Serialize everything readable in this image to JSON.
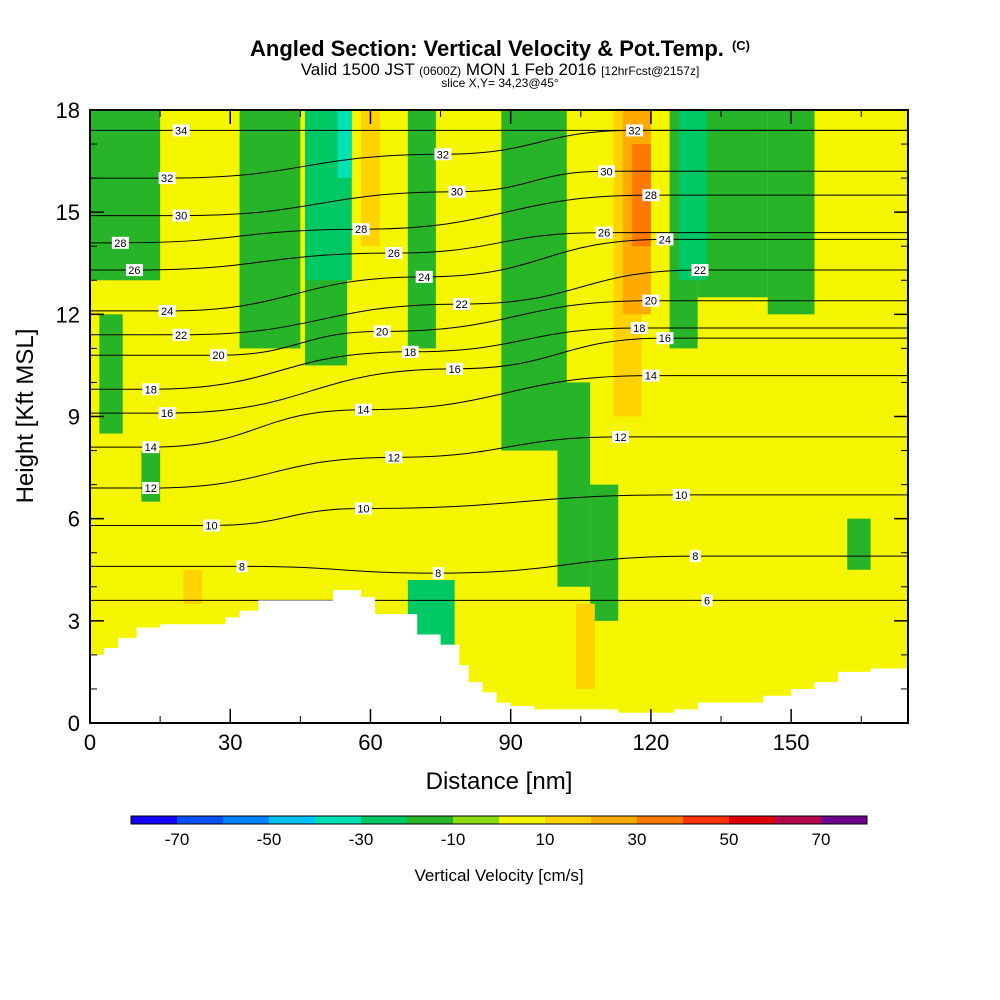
{
  "header": {
    "title": "Angled Section: Vertical Velocity & Pot.Temp.",
    "title_units": "(C)",
    "valid_prefix": "Valid 1500 JST",
    "valid_zulu": "(0600Z)",
    "valid_date": "MON 1 Feb 2016",
    "forecast": "[12hrFcst@2157z]",
    "slice": "slice X,Y= 34,23@45°"
  },
  "chart_data": {
    "type": "heatmap",
    "xlabel": "Distance [nm]",
    "ylabel": "Height [Kft MSL]",
    "xlim": [
      0,
      175
    ],
    "ylim": [
      0,
      18
    ],
    "x_ticks": [
      "0",
      "30",
      "60",
      "90",
      "120",
      "150"
    ],
    "x_tick_values": [
      0,
      30,
      60,
      90,
      120,
      150
    ],
    "y_ticks": [
      "0",
      "3",
      "6",
      "9",
      "12",
      "15",
      "18"
    ],
    "y_tick_values": [
      0,
      3,
      6,
      9,
      12,
      15,
      18
    ],
    "terrain": [
      [
        0,
        2.0
      ],
      [
        3,
        2.2
      ],
      [
        6,
        2.5
      ],
      [
        10,
        2.8
      ],
      [
        15,
        2.9
      ],
      [
        20,
        2.9
      ],
      [
        26,
        2.9
      ],
      [
        29,
        3.1
      ],
      [
        32,
        3.3
      ],
      [
        36,
        3.6
      ],
      [
        42,
        3.6
      ],
      [
        48,
        3.6
      ],
      [
        52,
        3.9
      ],
      [
        56,
        3.9
      ],
      [
        58,
        3.7
      ],
      [
        61,
        3.2
      ],
      [
        66,
        3.2
      ],
      [
        70,
        2.6
      ],
      [
        75,
        2.3
      ],
      [
        79,
        1.7
      ],
      [
        81,
        1.2
      ],
      [
        84,
        0.9
      ],
      [
        87,
        0.6
      ],
      [
        90,
        0.5
      ],
      [
        95,
        0.4
      ],
      [
        100,
        0.4
      ],
      [
        108,
        0.4
      ],
      [
        113,
        0.3
      ],
      [
        120,
        0.3
      ],
      [
        125,
        0.4
      ],
      [
        130,
        0.6
      ],
      [
        135,
        0.6
      ],
      [
        140,
        0.6
      ],
      [
        144,
        0.8
      ],
      [
        150,
        1.0
      ],
      [
        155,
        1.2
      ],
      [
        160,
        1.5
      ],
      [
        167,
        1.6
      ],
      [
        175,
        1.6
      ]
    ],
    "velocity_cells": [
      {
        "x": [
          0,
          175
        ],
        "y": [
          0,
          18
        ],
        "value": 0
      },
      {
        "x": [
          0,
          30
        ],
        "y": [
          0,
          2.9
        ],
        "value": 5
      },
      {
        "x": [
          30,
          80
        ],
        "y": [
          3.5,
          4.8
        ],
        "value": 5
      },
      {
        "x": [
          22,
          28
        ],
        "y": [
          5,
          9
        ],
        "value": 5
      },
      {
        "x": [
          40,
          85
        ],
        "y": [
          6,
          9.5
        ],
        "value": 5
      },
      {
        "x": [
          88,
          150
        ],
        "y": [
          7.5,
          10
        ],
        "value": 5
      },
      {
        "x": [
          160,
          175
        ],
        "y": [
          6,
          9
        ],
        "value": 5
      },
      {
        "x": [
          8,
          30
        ],
        "y": [
          9,
          11.5
        ],
        "value": 5
      },
      {
        "x": [
          20,
          24
        ],
        "y": [
          13,
          18
        ],
        "value": 5
      },
      {
        "x": [
          25,
          30
        ],
        "y": [
          11,
          18
        ],
        "value": 5
      },
      {
        "x": [
          60,
          72
        ],
        "y": [
          11,
          18
        ],
        "value": 5
      },
      {
        "x": [
          76,
          86
        ],
        "y": [
          12,
          18
        ],
        "value": 5
      },
      {
        "x": [
          110,
          116
        ],
        "y": [
          11,
          18
        ],
        "value": 5
      },
      {
        "x": [
          132,
          146
        ],
        "y": [
          10,
          12
        ],
        "value": 5
      },
      {
        "x": [
          166,
          175
        ],
        "y": [
          10,
          18
        ],
        "value": 5
      },
      {
        "x": [
          0,
          15
        ],
        "y": [
          13,
          18
        ],
        "value": -15
      },
      {
        "x": [
          2,
          7
        ],
        "y": [
          8.5,
          12
        ],
        "value": -15
      },
      {
        "x": [
          32,
          45
        ],
        "y": [
          11,
          18
        ],
        "value": -15
      },
      {
        "x": [
          46,
          55
        ],
        "y": [
          10.5,
          18
        ],
        "value": -15
      },
      {
        "x": [
          68,
          74
        ],
        "y": [
          11,
          18
        ],
        "value": -15
      },
      {
        "x": [
          88,
          102
        ],
        "y": [
          8,
          18
        ],
        "value": -15
      },
      {
        "x": [
          100,
          107
        ],
        "y": [
          4,
          10
        ],
        "value": -15
      },
      {
        "x": [
          107,
          113
        ],
        "y": [
          3,
          7
        ],
        "value": -15
      },
      {
        "x": [
          124,
          130
        ],
        "y": [
          11,
          18
        ],
        "value": -15
      },
      {
        "x": [
          130,
          145
        ],
        "y": [
          12.5,
          18
        ],
        "value": -15
      },
      {
        "x": [
          145,
          155
        ],
        "y": [
          12,
          18
        ],
        "value": -15
      },
      {
        "x": [
          11,
          15
        ],
        "y": [
          6.5,
          8
        ],
        "value": -15
      },
      {
        "x": [
          162,
          167
        ],
        "y": [
          4.5,
          6
        ],
        "value": -15
      },
      {
        "x": [
          68,
          78
        ],
        "y": [
          2,
          4.2
        ],
        "value": -25
      },
      {
        "x": [
          46,
          56
        ],
        "y": [
          13,
          18
        ],
        "value": -25
      },
      {
        "x": [
          126,
          132
        ],
        "y": [
          13,
          18
        ],
        "value": -25
      },
      {
        "x": [
          53,
          56
        ],
        "y": [
          16,
          18
        ],
        "value": -35
      },
      {
        "x": [
          20,
          24
        ],
        "y": [
          3.5,
          4.5
        ],
        "value": 15
      },
      {
        "x": [
          58,
          62
        ],
        "y": [
          14,
          18
        ],
        "value": 15
      },
      {
        "x": [
          104,
          108
        ],
        "y": [
          1,
          3.5
        ],
        "value": 15
      },
      {
        "x": [
          112,
          118
        ],
        "y": [
          9,
          18
        ],
        "value": 15
      },
      {
        "x": [
          114,
          120
        ],
        "y": [
          12,
          18
        ],
        "value": 25
      },
      {
        "x": [
          116,
          120
        ],
        "y": [
          14,
          17
        ],
        "value": 35
      }
    ],
    "contour_labels": [
      {
        "value": "34",
        "x": 19.5,
        "y": 17.4
      },
      {
        "value": "32",
        "x": 16.5,
        "y": 16.0
      },
      {
        "value": "30",
        "x": 19.5,
        "y": 14.9
      },
      {
        "value": "28",
        "x": 6.5,
        "y": 14.1
      },
      {
        "value": "26",
        "x": 9.5,
        "y": 13.3
      },
      {
        "value": "24",
        "x": 16.5,
        "y": 12.1
      },
      {
        "value": "22",
        "x": 19.5,
        "y": 11.4
      },
      {
        "value": "20",
        "x": 27.5,
        "y": 10.8
      },
      {
        "value": "18",
        "x": 13,
        "y": 9.8
      },
      {
        "value": "16",
        "x": 16.5,
        "y": 9.1
      },
      {
        "value": "14",
        "x": 13,
        "y": 8.1
      },
      {
        "value": "12",
        "x": 13,
        "y": 6.9
      },
      {
        "value": "10",
        "x": 26,
        "y": 5.8
      },
      {
        "value": "8",
        "x": 32.5,
        "y": 4.6
      },
      {
        "value": "32",
        "x": 75.5,
        "y": 16.7
      },
      {
        "value": "30",
        "x": 78.5,
        "y": 15.6
      },
      {
        "value": "28",
        "x": 58,
        "y": 14.5
      },
      {
        "value": "26",
        "x": 65,
        "y": 13.8
      },
      {
        "value": "24",
        "x": 71.5,
        "y": 13.1
      },
      {
        "value": "22",
        "x": 79.5,
        "y": 12.3
      },
      {
        "value": "20",
        "x": 62.5,
        "y": 11.5
      },
      {
        "value": "18",
        "x": 68.5,
        "y": 10.9
      },
      {
        "value": "16",
        "x": 78,
        "y": 10.4
      },
      {
        "value": "14",
        "x": 58.5,
        "y": 9.2
      },
      {
        "value": "12",
        "x": 65,
        "y": 7.8
      },
      {
        "value": "10",
        "x": 58.5,
        "y": 6.3
      },
      {
        "value": "8",
        "x": 74.5,
        "y": 4.4
      },
      {
        "value": "32",
        "x": 116.5,
        "y": 17.4
      },
      {
        "value": "30",
        "x": 110.5,
        "y": 16.2
      },
      {
        "value": "28",
        "x": 120,
        "y": 15.5
      },
      {
        "value": "26",
        "x": 110,
        "y": 14.4
      },
      {
        "value": "24",
        "x": 123,
        "y": 14.2
      },
      {
        "value": "22",
        "x": 130.5,
        "y": 13.3
      },
      {
        "value": "20",
        "x": 120,
        "y": 12.4
      },
      {
        "value": "18",
        "x": 117.5,
        "y": 11.6
      },
      {
        "value": "16",
        "x": 123,
        "y": 11.3
      },
      {
        "value": "14",
        "x": 120,
        "y": 10.2
      },
      {
        "value": "12",
        "x": 113.5,
        "y": 8.4
      },
      {
        "value": "10",
        "x": 126.5,
        "y": 6.7
      },
      {
        "value": "8",
        "x": 129.5,
        "y": 4.9
      },
      {
        "value": "6",
        "x": 132,
        "y": 3.6
      }
    ],
    "colorbar": {
      "title": "Vertical Velocity [cm/s]",
      "tick_labels": [
        "-70",
        "-50",
        "-30",
        "-10",
        "10",
        "30",
        "50",
        "70"
      ],
      "bins": [
        {
          "lo": -80,
          "hi": -70,
          "color": "#1400ff"
        },
        {
          "lo": -70,
          "hi": -60,
          "color": "#0050ff"
        },
        {
          "lo": -60,
          "hi": -50,
          "color": "#0082ff"
        },
        {
          "lo": -50,
          "hi": -40,
          "color": "#00c3ff"
        },
        {
          "lo": -40,
          "hi": -30,
          "color": "#00e1b4"
        },
        {
          "lo": -30,
          "hi": -20,
          "color": "#00c864"
        },
        {
          "lo": -20,
          "hi": -10,
          "color": "#28b428"
        },
        {
          "lo": -10,
          "hi": 0,
          "color": "#8cdc14"
        },
        {
          "lo": 0,
          "hi": 10,
          "color": "#f5f500"
        },
        {
          "lo": 10,
          "hi": 20,
          "color": "#ffd200"
        },
        {
          "lo": 20,
          "hi": 30,
          "color": "#ffaa00"
        },
        {
          "lo": 30,
          "hi": 40,
          "color": "#ff7800"
        },
        {
          "lo": 40,
          "hi": 50,
          "color": "#ff3200"
        },
        {
          "lo": 50,
          "hi": 60,
          "color": "#e10000"
        },
        {
          "lo": 60,
          "hi": 70,
          "color": "#b4004b"
        },
        {
          "lo": 70,
          "hi": 80,
          "color": "#6e008c"
        }
      ]
    }
  }
}
